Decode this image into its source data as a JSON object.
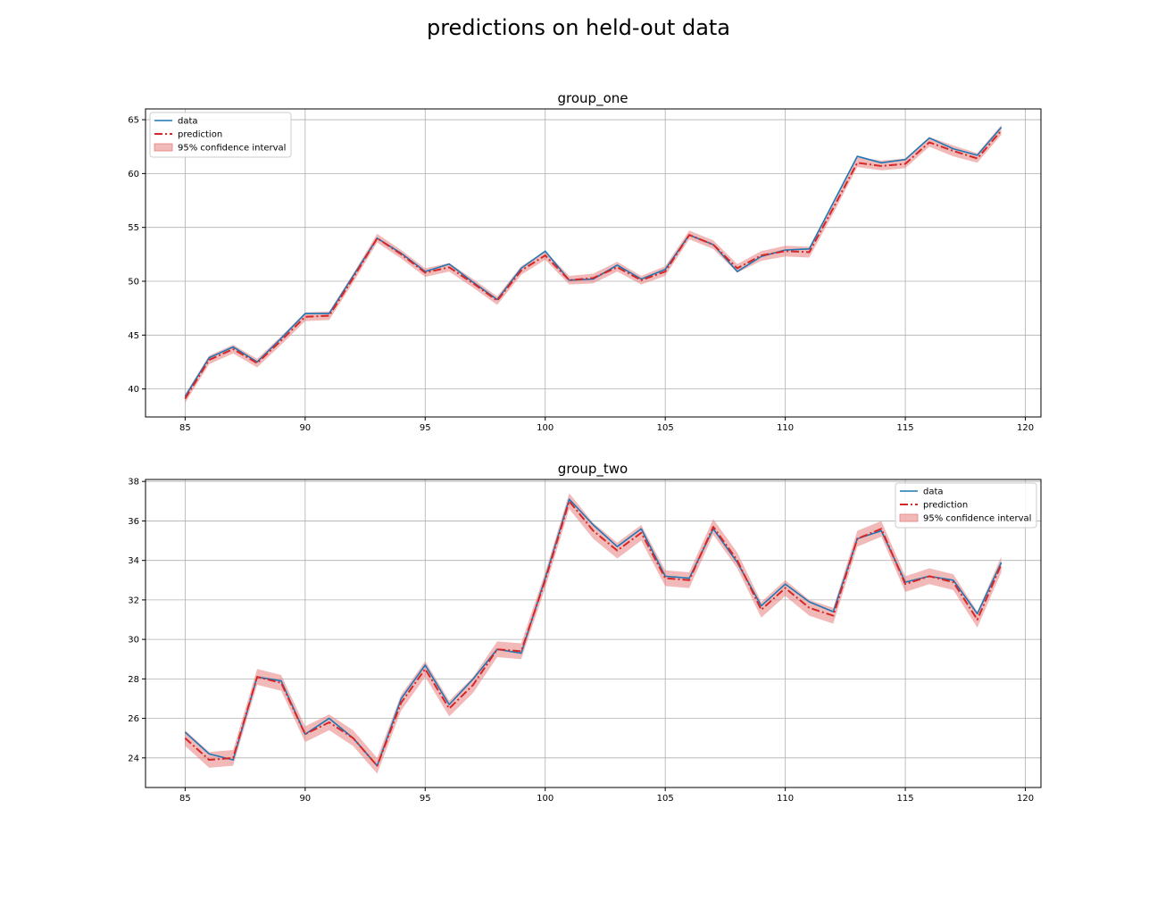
{
  "figure": {
    "title": "predictions on held-out data"
  },
  "colors": {
    "data": "#1f77b4",
    "prediction": "#d62728",
    "ci_fill": "#e88080",
    "grid": "#b0b0b0",
    "axes": "#000000"
  },
  "legend_labels": {
    "data": "data",
    "prediction": "prediction",
    "ci": "95% confidence interval"
  },
  "chart_data": [
    {
      "type": "line",
      "title": "group_one",
      "xlabel": "",
      "ylabel": "",
      "x": [
        85,
        86,
        87,
        88,
        89,
        90,
        91,
        92,
        93,
        94,
        95,
        96,
        97,
        98,
        99,
        100,
        101,
        102,
        103,
        104,
        105,
        106,
        107,
        108,
        109,
        110,
        111,
        112,
        113,
        114,
        115,
        116,
        117,
        118,
        119
      ],
      "xlim": [
        83.35,
        120.65
      ],
      "ylim": [
        37.4,
        66.0
      ],
      "xticks": [
        85,
        90,
        95,
        100,
        105,
        110,
        115,
        120
      ],
      "yticks": [
        40,
        45,
        50,
        55,
        60,
        65
      ],
      "grid": true,
      "legend_position": "upper-left",
      "series": [
        {
          "name": "data",
          "style": "solid",
          "values": [
            39.3,
            42.9,
            43.9,
            42.5,
            44.7,
            47.0,
            47.0,
            50.5,
            54.0,
            52.6,
            50.9,
            51.6,
            49.9,
            48.3,
            51.2,
            52.8,
            50.1,
            50.2,
            51.5,
            50.2,
            51.1,
            54.3,
            53.4,
            50.9,
            52.3,
            52.9,
            53.0,
            57.3,
            61.6,
            61.0,
            61.3,
            63.3,
            62.3,
            61.7,
            64.3
          ]
        },
        {
          "name": "prediction",
          "style": "dashdot",
          "values": [
            39.1,
            42.7,
            43.7,
            42.4,
            44.5,
            46.7,
            46.8,
            50.3,
            54.0,
            52.5,
            50.8,
            51.3,
            49.8,
            48.2,
            51.0,
            52.4,
            50.1,
            50.3,
            51.3,
            50.1,
            50.9,
            54.3,
            53.4,
            51.2,
            52.4,
            52.8,
            52.7,
            56.8,
            61.0,
            60.7,
            60.9,
            62.9,
            62.1,
            61.4,
            64.0
          ]
        }
      ],
      "ci": {
        "name": "95% confidence interval",
        "lower": [
          38.7,
          42.3,
          43.3,
          42.0,
          44.1,
          46.3,
          46.4,
          49.9,
          53.6,
          52.1,
          50.4,
          50.9,
          49.4,
          47.8,
          50.6,
          52.0,
          49.7,
          49.8,
          50.9,
          49.7,
          50.5,
          53.9,
          53.0,
          50.8,
          51.9,
          52.3,
          52.2,
          56.3,
          60.6,
          60.3,
          60.5,
          62.5,
          61.6,
          61.0,
          63.6
        ],
        "upper": [
          39.5,
          43.1,
          44.1,
          42.8,
          44.9,
          47.1,
          47.2,
          50.7,
          54.4,
          52.9,
          51.2,
          51.7,
          50.2,
          48.6,
          51.4,
          52.8,
          50.5,
          50.7,
          51.8,
          50.5,
          51.4,
          54.7,
          53.8,
          51.6,
          52.8,
          53.3,
          53.2,
          57.3,
          61.5,
          61.2,
          61.4,
          63.4,
          62.6,
          61.9,
          64.5
        ]
      }
    },
    {
      "type": "line",
      "title": "group_two",
      "xlabel": "",
      "ylabel": "",
      "x": [
        85,
        86,
        87,
        88,
        89,
        90,
        91,
        92,
        93,
        94,
        95,
        96,
        97,
        98,
        99,
        100,
        101,
        102,
        103,
        104,
        105,
        106,
        107,
        108,
        109,
        110,
        111,
        112,
        113,
        114,
        115,
        116,
        117,
        118,
        119
      ],
      "xlim": [
        83.35,
        120.65
      ],
      "ylim": [
        22.5,
        38.1
      ],
      "xticks": [
        85,
        90,
        95,
        100,
        105,
        110,
        115,
        120
      ],
      "yticks": [
        24,
        26,
        28,
        30,
        32,
        34,
        36,
        38
      ],
      "grid": true,
      "legend_position": "upper-right",
      "series": [
        {
          "name": "data",
          "style": "solid",
          "values": [
            25.3,
            24.2,
            23.9,
            28.1,
            27.9,
            25.2,
            26.0,
            25.0,
            23.6,
            27.0,
            28.7,
            26.7,
            28.0,
            29.5,
            29.3,
            33.1,
            37.1,
            35.8,
            34.7,
            35.6,
            33.2,
            33.1,
            35.6,
            33.9,
            31.7,
            32.8,
            31.9,
            31.4,
            35.1,
            35.5,
            32.9,
            33.2,
            33.0,
            31.3,
            33.9
          ]
        },
        {
          "name": "prediction",
          "style": "dashdot",
          "values": [
            25.0,
            23.9,
            24.0,
            28.1,
            27.8,
            25.2,
            25.8,
            25.0,
            23.6,
            26.8,
            28.5,
            26.5,
            27.7,
            29.5,
            29.4,
            33.0,
            37.0,
            35.5,
            34.5,
            35.4,
            33.1,
            33.0,
            35.7,
            34.0,
            31.5,
            32.6,
            31.6,
            31.2,
            35.1,
            35.6,
            32.8,
            33.2,
            32.9,
            31.0,
            33.8
          ]
        }
      ],
      "ci": {
        "name": "95% confidence interval",
        "lower": [
          24.6,
          23.5,
          23.6,
          27.7,
          27.4,
          24.8,
          25.4,
          24.6,
          23.2,
          26.4,
          28.1,
          26.1,
          27.3,
          29.1,
          29.0,
          32.6,
          36.6,
          35.1,
          34.1,
          35.0,
          32.7,
          32.6,
          35.3,
          33.6,
          31.1,
          32.2,
          31.2,
          30.8,
          34.7,
          35.2,
          32.4,
          32.8,
          32.5,
          30.6,
          33.4
        ],
        "upper": [
          25.4,
          24.3,
          24.4,
          28.5,
          28.2,
          25.6,
          26.2,
          25.4,
          24.0,
          27.2,
          28.9,
          26.9,
          28.1,
          29.9,
          29.8,
          33.4,
          37.4,
          35.9,
          34.9,
          35.8,
          33.5,
          33.4,
          36.1,
          34.4,
          31.9,
          33.0,
          32.0,
          31.6,
          35.5,
          36.0,
          33.2,
          33.6,
          33.3,
          31.4,
          34.2
        ]
      }
    }
  ]
}
